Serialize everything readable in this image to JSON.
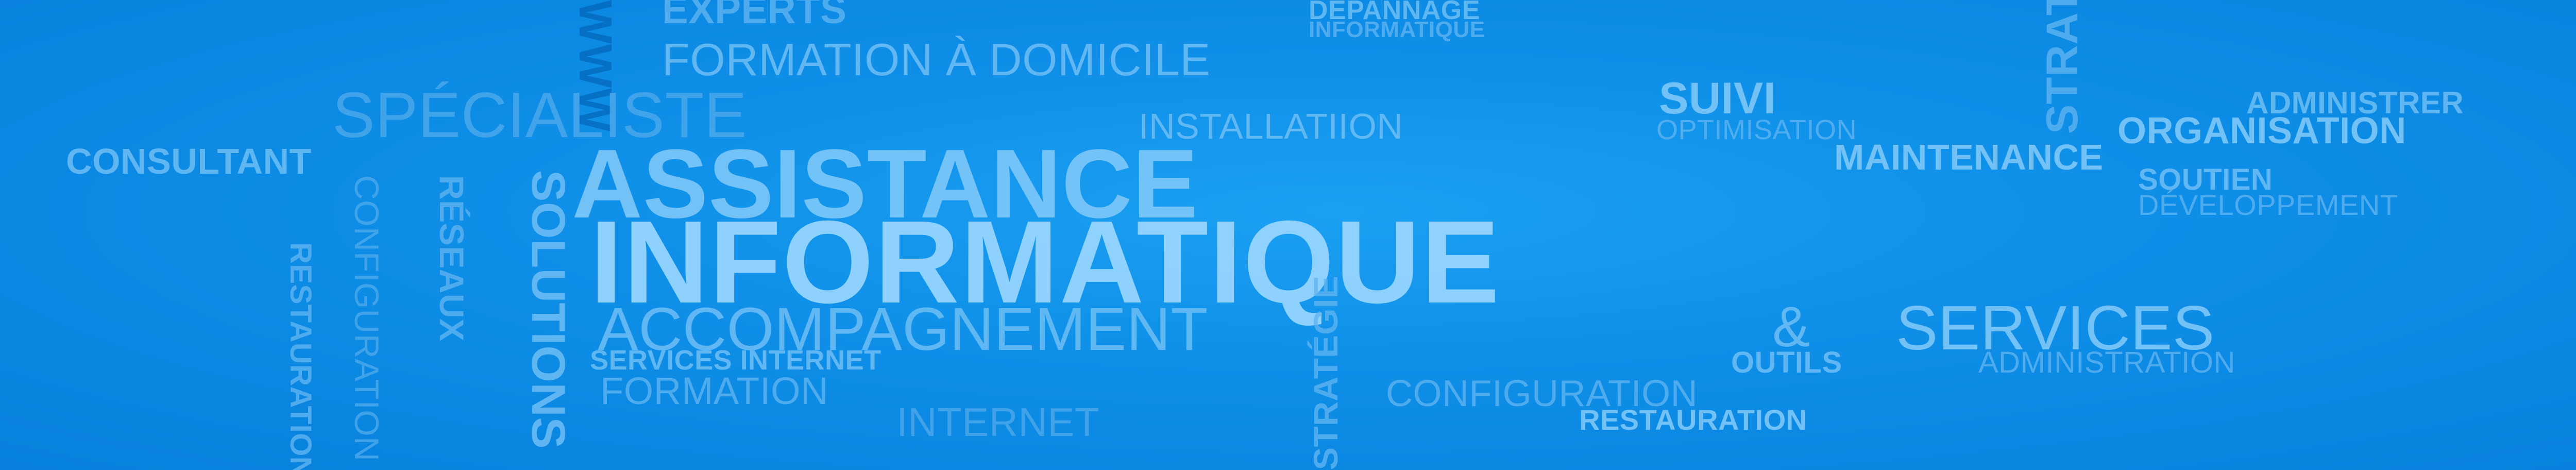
{
  "colors": {
    "background": "#0a88e0",
    "text_light": "#8fd0ff",
    "text_dark": "#0a69b9"
  },
  "words": {
    "www": "WWW",
    "experts": "EXPERTS",
    "depannage": "DÉPANNAGE",
    "informatique_small": "INFORMATIQUE",
    "strategie_top": "STRATÉGIE",
    "formation_a_domicile": "FORMATION À DOMICILE",
    "suivi": "SUIVI",
    "administrer": "ADMINISTRER",
    "specialiste": "SPÉCIALISTE",
    "installation": "INSTALLATIION",
    "optimisation": "OPTIMISATION",
    "organisation": "ORGANISATION",
    "consultant": "CONSULTANT",
    "maintenance": "MAINTENANCE",
    "soutien": "SOUTIEN",
    "developpement": "DÉVELOPPEMENT",
    "assistance": "ASSISTANCE",
    "reseaux": "RÉSEAUX",
    "configuration_vertical": "CONFIGURATION",
    "restauration_vertical": "RESTAURATION",
    "solutions": "SOLUTIONS",
    "informatique_big": "INFORMATIQUE",
    "accompagnement": "ACCOMPAGNEMENT",
    "ampersand": "&",
    "services": "SERVICES",
    "services_internet": "SERVICES INTERNET",
    "outils": "OUTILS",
    "administration": "ADMINISTRATION",
    "formation": "FORMATION",
    "strategie_bottom": "STRATÉGIE",
    "configuration": "CONFIGURATION",
    "internet": "INTERNET",
    "restauration": "RESTAURATION"
  }
}
